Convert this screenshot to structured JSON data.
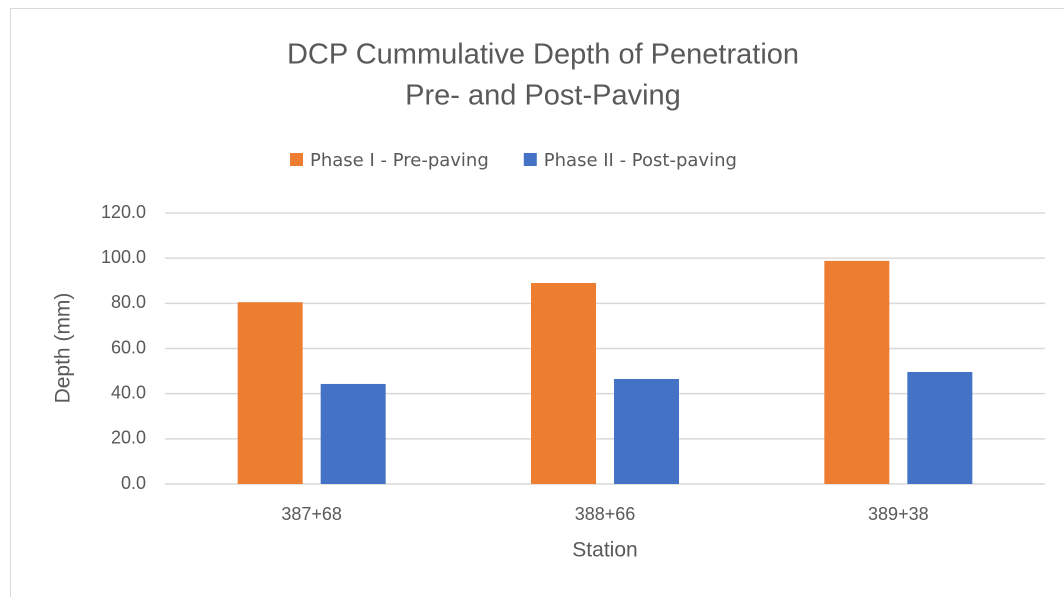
{
  "chart_data": {
    "type": "bar",
    "title": "DCP Cummulative Depth of Penetration",
    "subtitle": "Pre- and Post-Paving",
    "x_label": "Station",
    "y_label": "Depth (mm)",
    "categories": [
      "387+68",
      "388+66",
      "389+38"
    ],
    "series": [
      {
        "name": "Phase I - Pre-paving",
        "color": "#ed7d31",
        "values": [
          80.5,
          89.0,
          98.8
        ]
      },
      {
        "name": "Phase II - Post-paving",
        "color": "#4472c4",
        "values": [
          44.3,
          46.5,
          49.6
        ]
      }
    ],
    "ylim": [
      0,
      120
    ],
    "yticks": [
      {
        "value": 0,
        "label": "0.0"
      },
      {
        "value": 20,
        "label": "20.0"
      },
      {
        "value": 40,
        "label": "40.0"
      },
      {
        "value": 60,
        "label": "60.0"
      },
      {
        "value": 80,
        "label": "80.0"
      },
      {
        "value": 100,
        "label": "100.0"
      },
      {
        "value": 120,
        "label": "120.0"
      }
    ],
    "grid": true,
    "legend": "top"
  }
}
